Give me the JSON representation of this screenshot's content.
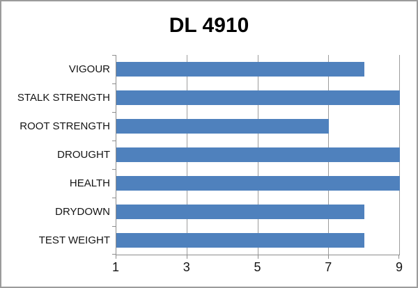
{
  "chart_data": {
    "type": "bar",
    "orientation": "horizontal",
    "title": "DL 4910",
    "categories": [
      "VIGOUR",
      "STALK STRENGTH",
      "ROOT STRENGTH",
      "DROUGHT",
      "HEALTH",
      "DRYDOWN",
      "TEST WEIGHT"
    ],
    "values": [
      8,
      9,
      7,
      9,
      9,
      8,
      8
    ],
    "xlim": [
      1,
      9
    ],
    "x_tick_values": [
      1,
      3,
      5,
      7,
      9
    ],
    "x_tick_labels": [
      "1",
      "3",
      "5",
      "7",
      "9"
    ],
    "gridline_values": [
      3,
      5,
      7,
      9
    ],
    "grid": "vertical-only",
    "legend": "none",
    "xlabel": "",
    "ylabel": "",
    "colors": {
      "bar": "#4f81bd",
      "axis": "#8c8c8c",
      "gridline": "#9c9c9c",
      "text": "#141414",
      "title_text": "#000000",
      "background": "#ffffff",
      "frame_border": "#9b9b9b"
    }
  }
}
